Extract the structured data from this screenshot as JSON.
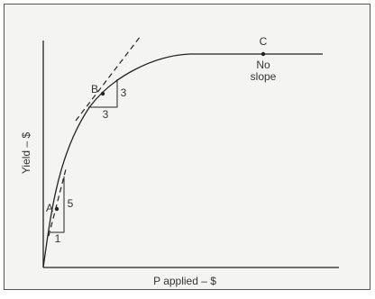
{
  "axes": {
    "y_label": "Yield – $",
    "x_label": "P applied – $"
  },
  "points": [
    {
      "label": "A"
    },
    {
      "label": "B"
    },
    {
      "label": "C",
      "note": [
        "No",
        "slope"
      ]
    }
  ],
  "slope_triangles": [
    {
      "rise": "5",
      "run": "1"
    },
    {
      "rise": "3",
      "run": "3"
    }
  ]
}
